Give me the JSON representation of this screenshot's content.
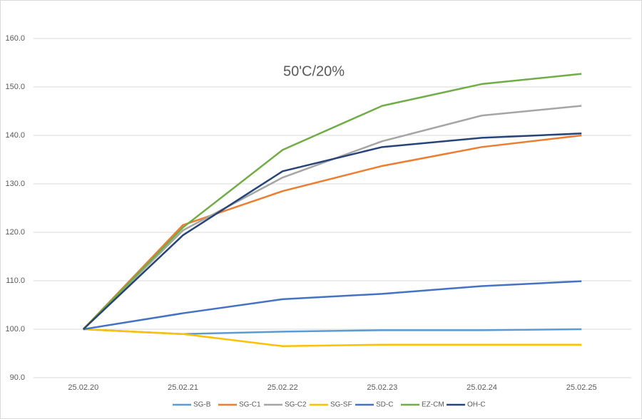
{
  "chart_data": {
    "type": "line",
    "title": "50'C/20%",
    "categories": [
      "25.02.20",
      "25.02.21",
      "25.02.22",
      "25.02.23",
      "25.02.24",
      "25.02.25"
    ],
    "ylim": [
      90,
      160
    ],
    "yticks": [
      {
        "value": 90,
        "label": "90.0"
      },
      {
        "value": 100,
        "label": "100.0"
      },
      {
        "value": 110,
        "label": "110.0"
      },
      {
        "value": 120,
        "label": "120.0"
      },
      {
        "value": 130,
        "label": "130.0"
      },
      {
        "value": 140,
        "label": "140.0"
      },
      {
        "value": 150,
        "label": "150.0"
      },
      {
        "value": 160,
        "label": "160.0"
      }
    ],
    "grid": true,
    "legend": "bottom",
    "series": [
      {
        "name": "SG-B",
        "color": "#5b9bd5",
        "values": [
          100,
          99.0,
          99.5,
          99.8,
          99.8,
          100.0
        ]
      },
      {
        "name": "SG-C1",
        "color": "#ed7d31",
        "values": [
          100,
          121.5,
          128.5,
          133.7,
          137.6,
          140.0
        ]
      },
      {
        "name": "SG-C2",
        "color": "#a5a5a5",
        "values": [
          100,
          120.4,
          131.3,
          138.8,
          144.1,
          146.1
        ]
      },
      {
        "name": "SG-SF",
        "color": "#ffc000",
        "values": [
          100,
          99.0,
          96.5,
          96.8,
          96.8,
          96.8
        ]
      },
      {
        "name": "SD-C",
        "color": "#4472c4",
        "values": [
          100,
          103.3,
          106.2,
          107.3,
          108.9,
          109.9
        ]
      },
      {
        "name": "EZ-CM",
        "color": "#70ad47",
        "values": [
          100,
          121.0,
          137.0,
          146.1,
          150.6,
          152.7
        ]
      },
      {
        "name": "OH-C",
        "color": "#264478",
        "values": [
          100,
          119.4,
          132.6,
          137.6,
          139.5,
          140.4
        ]
      }
    ]
  }
}
